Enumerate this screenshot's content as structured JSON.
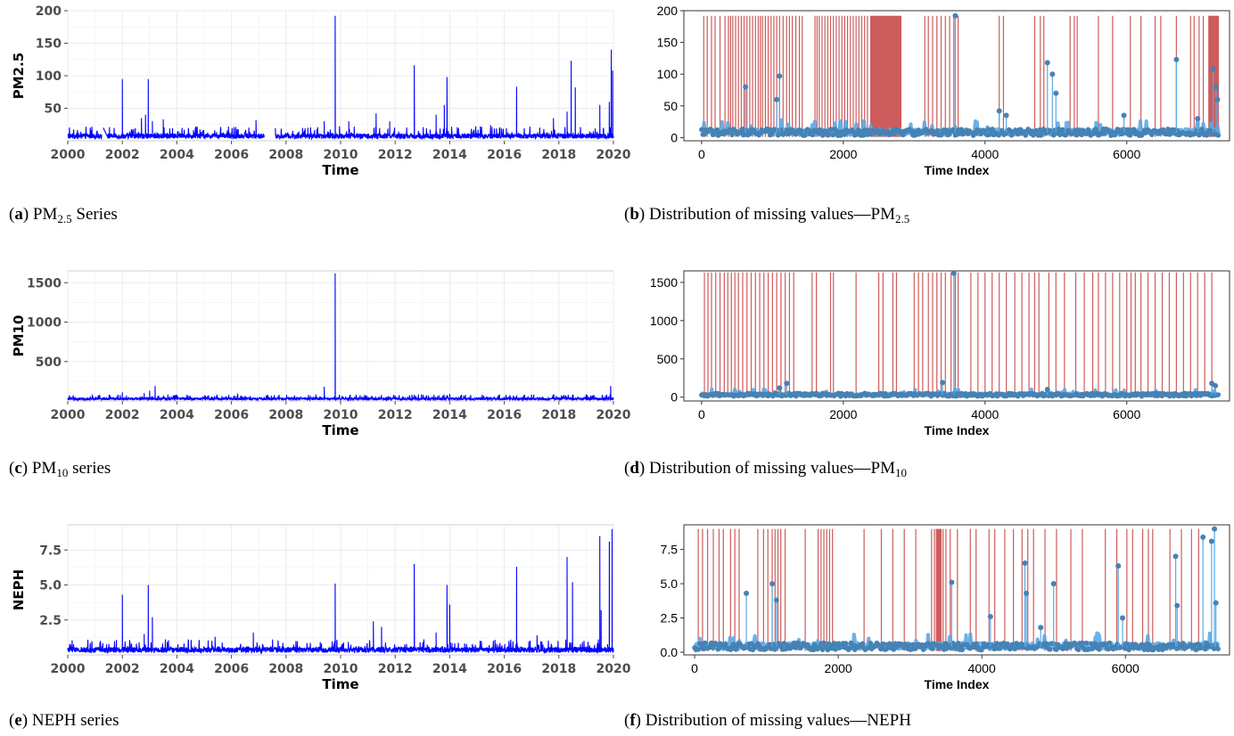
{
  "chart_data": [
    {
      "id": "a",
      "type": "line",
      "ylabel": "PM2.5",
      "xlabel": "Time",
      "x_ticks": [
        "2000",
        "2002",
        "2004",
        "2006",
        "2008",
        "2010",
        "2012",
        "2014",
        "2016",
        "2018",
        "2020"
      ],
      "y_ticks": [
        "50",
        "100",
        "150",
        "200"
      ],
      "xlim": [
        2000,
        2020
      ],
      "ylim": [
        0,
        200
      ],
      "color": "#0000ff",
      "baseline": 8,
      "gaps": [
        [
          2001.25,
          2001.45
        ],
        [
          2007.2,
          2007.6
        ]
      ],
      "spikes": [
        [
          2001.3,
          20
        ],
        [
          2002.0,
          95
        ],
        [
          2002.35,
          18
        ],
        [
          2002.7,
          35
        ],
        [
          2002.85,
          40
        ],
        [
          2002.95,
          95
        ],
        [
          2003.1,
          30
        ],
        [
          2003.5,
          33
        ],
        [
          2004.7,
          22
        ],
        [
          2006.9,
          32
        ],
        [
          2008.8,
          20
        ],
        [
          2009.4,
          30
        ],
        [
          2009.8,
          192
        ],
        [
          2010.3,
          30
        ],
        [
          2011.3,
          42
        ],
        [
          2011.8,
          30
        ],
        [
          2012.7,
          116
        ],
        [
          2013.5,
          40
        ],
        [
          2013.8,
          55
        ],
        [
          2013.9,
          98
        ],
        [
          2015.5,
          24
        ],
        [
          2016.45,
          83
        ],
        [
          2017.8,
          35
        ],
        [
          2018.3,
          45
        ],
        [
          2018.45,
          123
        ],
        [
          2018.6,
          82
        ],
        [
          2019.5,
          55
        ],
        [
          2019.85,
          60
        ],
        [
          2019.92,
          140
        ],
        [
          2019.97,
          108
        ],
        [
          2020.0,
          64
        ]
      ],
      "caption": {
        "letter": "a",
        "pre": "PM",
        "sub": "2.5",
        "post": " Series"
      }
    },
    {
      "id": "b",
      "type": "scatter",
      "ylabel": "",
      "xlabel": "Time Index",
      "x_ticks": [
        "0",
        "2000",
        "4000",
        "6000"
      ],
      "y_ticks": [
        "0",
        "50",
        "100",
        "150",
        "200"
      ],
      "xlim": [
        -250,
        7450
      ],
      "ylim": [
        -5,
        200
      ],
      "na_color": "#cd5c5c",
      "point_color": "#4682b4",
      "na_top": 192,
      "baseline": 8,
      "na_lines": [
        30,
        80,
        140,
        190,
        260,
        330,
        380,
        410,
        440,
        480,
        520,
        560,
        600,
        640,
        680,
        720,
        760,
        800,
        830,
        860,
        900,
        940,
        980,
        1020,
        1060,
        1100,
        1150,
        1200,
        1240,
        1280,
        1330,
        1380,
        1420,
        1600,
        1630,
        1660,
        1700,
        1740,
        1780,
        1820,
        1860,
        1900,
        1940,
        1980,
        2020,
        2060,
        2100,
        2140,
        2180,
        2220,
        2260,
        2300,
        2340,
        3150,
        3200,
        3260,
        3320,
        3380,
        3440,
        3500,
        3560,
        3620,
        4200,
        4260,
        4700,
        4780,
        4830,
        5200,
        5260,
        5300,
        5600,
        5800,
        6050,
        6200,
        6400,
        6480,
        6700,
        6900,
        6950,
        7020,
        7080
      ],
      "na_bands": [
        [
          2380,
          2820
        ],
        [
          7150,
          7300
        ]
      ],
      "spikes": [
        [
          620,
          80
        ],
        [
          1060,
          60
        ],
        [
          1100,
          97
        ],
        [
          3580,
          192
        ],
        [
          4200,
          42
        ],
        [
          4300,
          35
        ],
        [
          4880,
          118
        ],
        [
          4950,
          100
        ],
        [
          5000,
          70
        ],
        [
          5960,
          35
        ],
        [
          6700,
          123
        ],
        [
          7000,
          30
        ],
        [
          7220,
          108
        ],
        [
          7260,
          80
        ],
        [
          7280,
          60
        ]
      ],
      "caption": {
        "letter": "b",
        "pre": "Distribution of missing values—PM",
        "sub": "2.5",
        "post": ""
      }
    },
    {
      "id": "c",
      "type": "line",
      "ylabel": "PM10",
      "xlabel": "Time",
      "x_ticks": [
        "2000",
        "2002",
        "2004",
        "2006",
        "2008",
        "2010",
        "2012",
        "2014",
        "2016",
        "2018",
        "2020"
      ],
      "y_ticks": [
        "500",
        "1000",
        "1500"
      ],
      "xlim": [
        2000,
        2020
      ],
      "ylim": [
        0,
        1650
      ],
      "color": "#0000ff",
      "baseline": 30,
      "gaps": [],
      "spikes": [
        [
          2002.0,
          110
        ],
        [
          2002.8,
          100
        ],
        [
          2003.0,
          130
        ],
        [
          2003.2,
          190
        ],
        [
          2009.4,
          180
        ],
        [
          2009.8,
          1620
        ],
        [
          2012.7,
          80
        ],
        [
          2014.0,
          90
        ],
        [
          2016.45,
          70
        ],
        [
          2018.5,
          80
        ],
        [
          2019.9,
          190
        ],
        [
          2020.0,
          160
        ]
      ],
      "caption": {
        "letter": "c",
        "pre": "PM",
        "sub": "10",
        "post": " series"
      }
    },
    {
      "id": "d",
      "type": "scatter",
      "ylabel": "",
      "xlabel": "Time Index",
      "x_ticks": [
        "0",
        "2000",
        "4000",
        "6000"
      ],
      "y_ticks": [
        "0",
        "500",
        "1000",
        "1500"
      ],
      "xlim": [
        -250,
        7450
      ],
      "ylim": [
        -50,
        1650
      ],
      "na_color": "#cd5c5c",
      "point_color": "#4682b4",
      "na_top": 1630,
      "baseline": 30,
      "na_lines": [
        40,
        90,
        140,
        200,
        260,
        320,
        370,
        420,
        470,
        520,
        580,
        640,
        700,
        760,
        820,
        880,
        940,
        1000,
        1060,
        1120,
        1180,
        1240,
        1300,
        1560,
        1620,
        1820,
        1860,
        2180,
        2500,
        2560,
        2700,
        2750,
        3000,
        3060,
        3120,
        3200,
        3260,
        3320,
        3380,
        3440,
        3520,
        3580,
        3620,
        3800,
        3900,
        4000,
        4100,
        4200,
        4300,
        4420,
        4520,
        4620,
        4700,
        4760,
        4900,
        5000,
        5120,
        5280,
        5400,
        5520,
        5600,
        5700,
        5800,
        5900,
        6000,
        6060,
        6120,
        6200,
        6300,
        6400,
        6500,
        6600,
        6700,
        6800,
        6900,
        7000,
        7100,
        7200
      ],
      "na_bands": [],
      "spikes": [
        [
          1100,
          120
        ],
        [
          1200,
          180
        ],
        [
          3400,
          190
        ],
        [
          3560,
          1620
        ],
        [
          4880,
          100
        ],
        [
          7200,
          180
        ],
        [
          7250,
          150
        ]
      ],
      "caption": {
        "letter": "d",
        "pre": "Distribution of missing values—PM",
        "sub": "10",
        "post": ""
      }
    },
    {
      "id": "e",
      "type": "line",
      "ylabel": "NEPH",
      "xlabel": "Time",
      "x_ticks": [
        "2000",
        "2002",
        "2004",
        "2006",
        "2008",
        "2010",
        "2012",
        "2014",
        "2016",
        "2018",
        "2020"
      ],
      "y_ticks": [
        "2.5",
        "5.0",
        "7.5"
      ],
      "xlim": [
        2000,
        2020
      ],
      "ylim": [
        0,
        9.3
      ],
      "color": "#0000ff",
      "baseline": 0.4,
      "gaps": [],
      "spikes": [
        [
          2001.2,
          1.0
        ],
        [
          2002.0,
          4.3
        ],
        [
          2002.8,
          1.5
        ],
        [
          2002.95,
          5.0
        ],
        [
          2003.1,
          2.7
        ],
        [
          2005.4,
          1.3
        ],
        [
          2006.8,
          1.6
        ],
        [
          2009.8,
          5.1
        ],
        [
          2011.2,
          2.4
        ],
        [
          2011.5,
          2.0
        ],
        [
          2012.7,
          6.5
        ],
        [
          2013.5,
          1.6
        ],
        [
          2013.9,
          5.0
        ],
        [
          2014.0,
          3.6
        ],
        [
          2016.45,
          6.3
        ],
        [
          2017.2,
          1.4
        ],
        [
          2018.3,
          7.0
        ],
        [
          2018.5,
          5.2
        ],
        [
          2019.5,
          8.5
        ],
        [
          2019.55,
          3.2
        ],
        [
          2019.85,
          8.1
        ],
        [
          2019.95,
          9.0
        ],
        [
          2020.0,
          3.7
        ]
      ],
      "caption": {
        "letter": "e",
        "pre": "NEPH series",
        "sub": "",
        "post": ""
      }
    },
    {
      "id": "f",
      "type": "scatter",
      "ylabel": "",
      "xlabel": "Time Index",
      "x_ticks": [
        "0",
        "2000",
        "4000",
        "6000"
      ],
      "y_ticks": [
        "0.0",
        "2.5",
        "5.0",
        "7.5"
      ],
      "xlim": [
        -150,
        7450
      ],
      "ylim": [
        -0.2,
        9.3
      ],
      "na_color": "#cd5c5c",
      "point_color": "#4682b4",
      "na_top": 9.0,
      "baseline": 0.4,
      "na_lines": [
        50,
        110,
        180,
        260,
        340,
        400,
        500,
        560,
        620,
        880,
        960,
        1020,
        1080,
        1120,
        1160,
        1200,
        1260,
        1540,
        1720,
        1760,
        1800,
        1840,
        1880,
        1920,
        2360,
        2600,
        2760,
        2920,
        3080,
        3300,
        3340,
        3380,
        3420,
        3460,
        3500,
        3560,
        3660,
        3840,
        3920,
        4100,
        4180,
        4320,
        4440,
        4560,
        4640,
        4720,
        4880,
        5040,
        5240,
        5400,
        5720,
        5880,
        6020,
        6100,
        6240,
        6320,
        6380,
        6620,
        6780,
        6920,
        7020
      ],
      "na_bands": [
        [
          3360,
          3440
        ]
      ],
      "spikes": [
        [
          720,
          4.3
        ],
        [
          1080,
          5.0
        ],
        [
          1140,
          3.8
        ],
        [
          3580,
          5.1
        ],
        [
          4120,
          2.6
        ],
        [
          4600,
          6.5
        ],
        [
          4620,
          4.3
        ],
        [
          4820,
          1.8
        ],
        [
          5000,
          5.0
        ],
        [
          5900,
          6.3
        ],
        [
          5960,
          2.5
        ],
        [
          6700,
          7.0
        ],
        [
          6720,
          3.4
        ],
        [
          7080,
          8.4
        ],
        [
          7200,
          8.1
        ],
        [
          7240,
          9.0
        ],
        [
          7260,
          3.6
        ]
      ],
      "caption": {
        "letter": "f",
        "pre": "Distribution of missing values—NEPH",
        "sub": "",
        "post": ""
      }
    }
  ]
}
